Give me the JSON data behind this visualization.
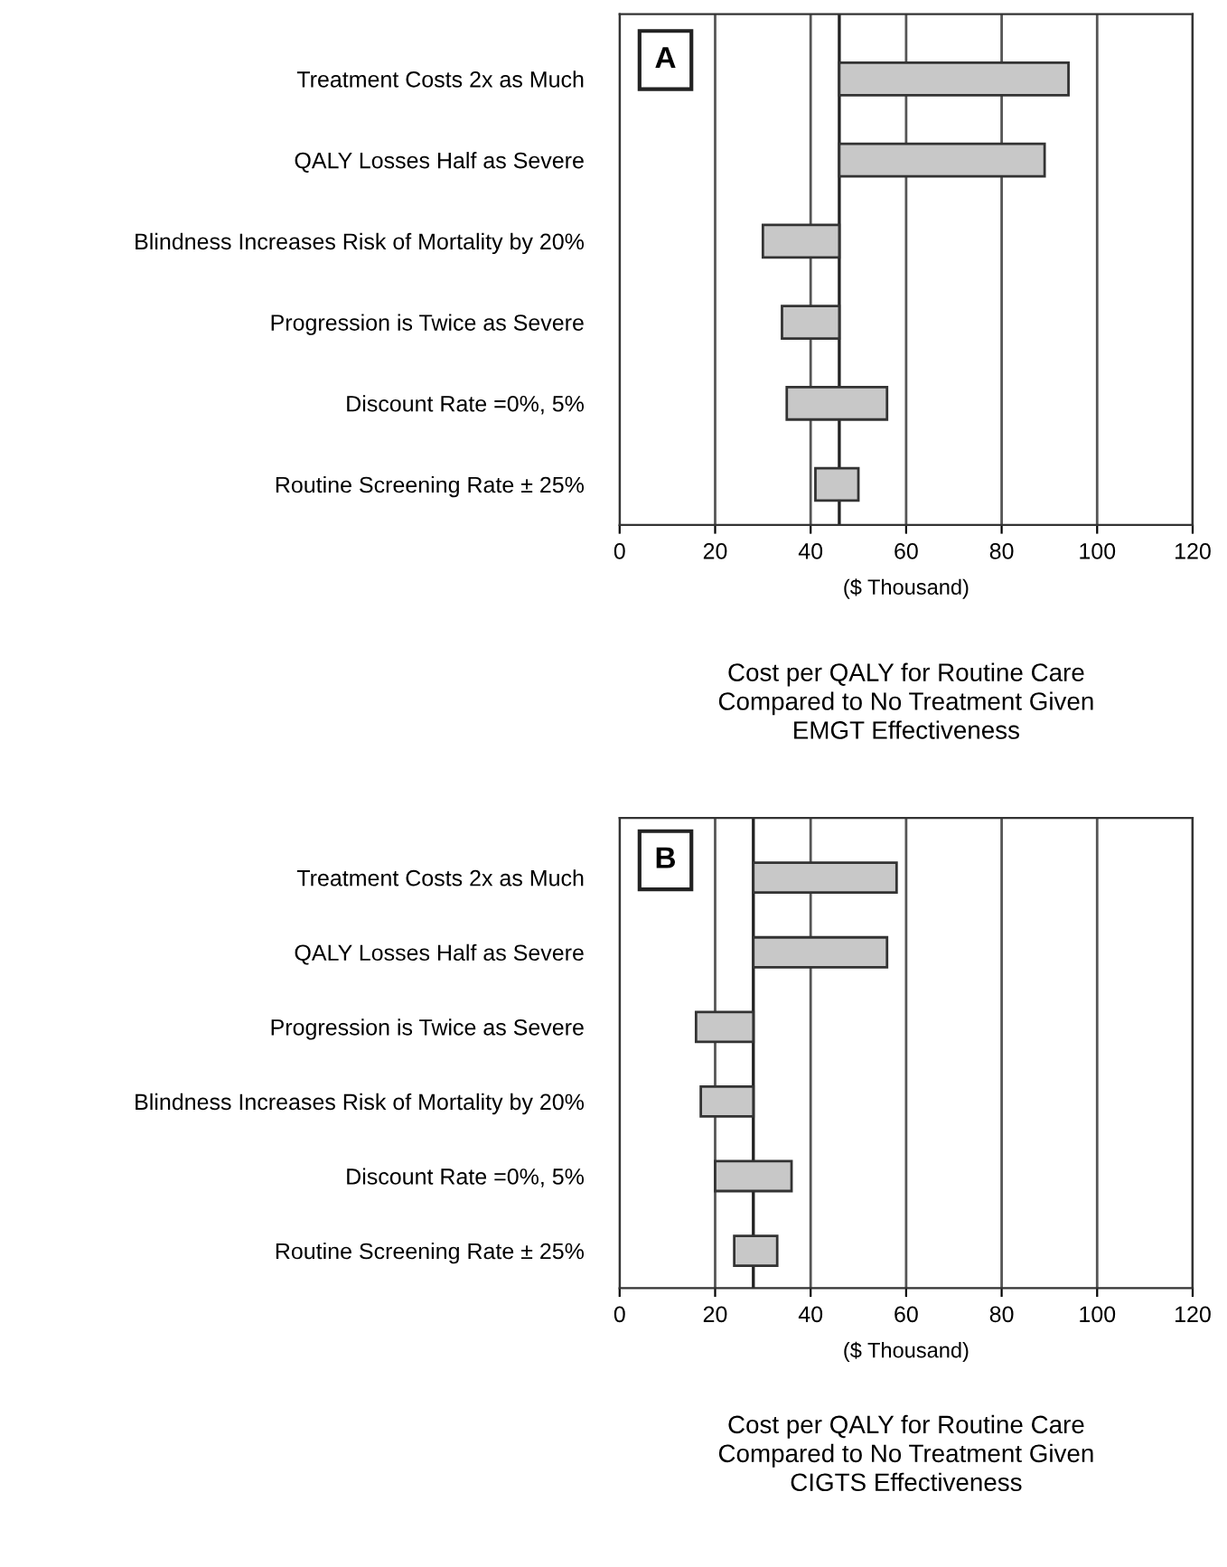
{
  "chart_data": [
    {
      "type": "bar",
      "orientation": "horizontal",
      "categories": [
        "Treatment Costs 2x as Much",
        "QALY Losses Half as Severe",
        "Blindness Increases Risk of Mortality by 20%",
        "Progression is Twice as Severe",
        "Discount Rate =0%, 5%",
        "Routine Screening Rate ± 25%"
      ],
      "base": [
        46,
        46,
        30,
        34,
        35,
        41
      ],
      "values": [
        48,
        43,
        16,
        12,
        21,
        9
      ],
      "color": "#c8c8c8",
      "xlim": [
        0,
        120
      ],
      "xticks": [
        0,
        20,
        40,
        60,
        80,
        100,
        120
      ],
      "grid": "x",
      "xlabel": "($ Thousand)",
      "ref_lines": [
        {
          "axis": "x",
          "value": 46
        }
      ],
      "annotations": [
        "A",
        "Cost per QALY for Routine Care\nCompared to No Treatment Given\nEMGT Effectiveness"
      ]
    },
    {
      "type": "bar",
      "orientation": "horizontal",
      "categories": [
        "Treatment Costs 2x as Much",
        "QALY Losses Half as Severe",
        "Progression is Twice as Severe",
        "Blindness Increases Risk of Mortality by 20%",
        "Discount Rate =0%, 5%",
        "Routine Screening Rate ± 25%"
      ],
      "base": [
        28,
        28,
        16,
        17,
        20,
        24
      ],
      "values": [
        30,
        28,
        12,
        11,
        16,
        9
      ],
      "color": "#c8c8c8",
      "xlim": [
        0,
        120
      ],
      "xticks": [
        0,
        20,
        40,
        60,
        80,
        100,
        120
      ],
      "grid": "x",
      "xlabel": "($ Thousand)",
      "ref_lines": [
        {
          "axis": "x",
          "value": 28
        }
      ],
      "annotations": [
        "B",
        "Cost per QALY for Routine Care\nCompared to No Treatment Given\nCIGTS Effectiveness"
      ]
    }
  ]
}
